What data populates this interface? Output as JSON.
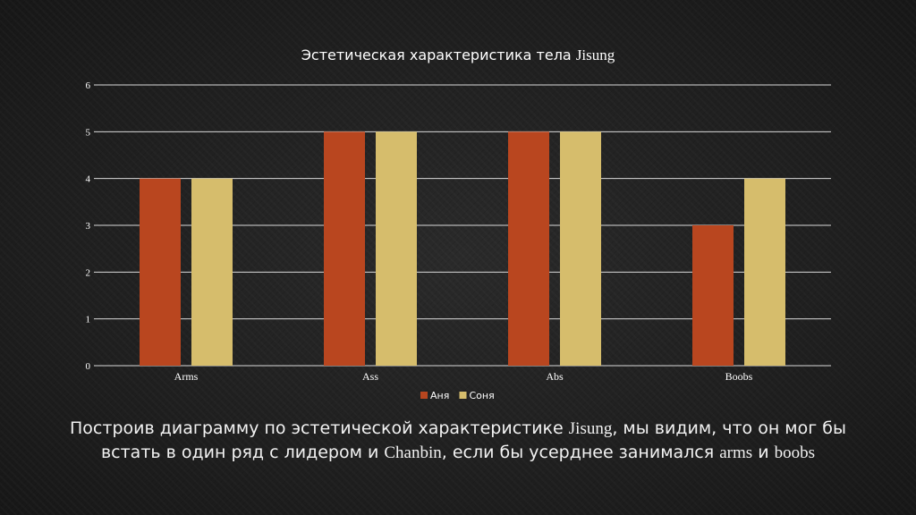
{
  "chart_data": {
    "type": "bar",
    "title": {
      "main": "Эстетическая характеристика тела ",
      "name": "Jisung"
    },
    "categories": [
      "Arms",
      "Ass",
      "Abs",
      "Boobs"
    ],
    "series": [
      {
        "name": "Аня",
        "values": [
          4,
          5,
          5,
          3
        ],
        "color": "#b9461f"
      },
      {
        "name": "Соня",
        "values": [
          4,
          5,
          5,
          4
        ],
        "color": "#d6bd6c"
      }
    ],
    "ylim": [
      0,
      6
    ],
    "yticks": [
      0,
      1,
      2,
      3,
      4,
      5,
      6
    ],
    "grid": true,
    "legend_position": "bottom"
  },
  "caption": {
    "t1": "Построив диаграмму по эстетической характеристике ",
    "n1": "Jisung",
    "t2": ", мы видим, что он мог бы встать в один ряд с лидером и ",
    "n2": "Chanbin",
    "t3": ", если бы усерднее занимался ",
    "n3": "arms",
    "t4": " и ",
    "n4": "boobs"
  },
  "colors": {
    "gridline": "#d9d9d9",
    "text": "#ffffff"
  }
}
